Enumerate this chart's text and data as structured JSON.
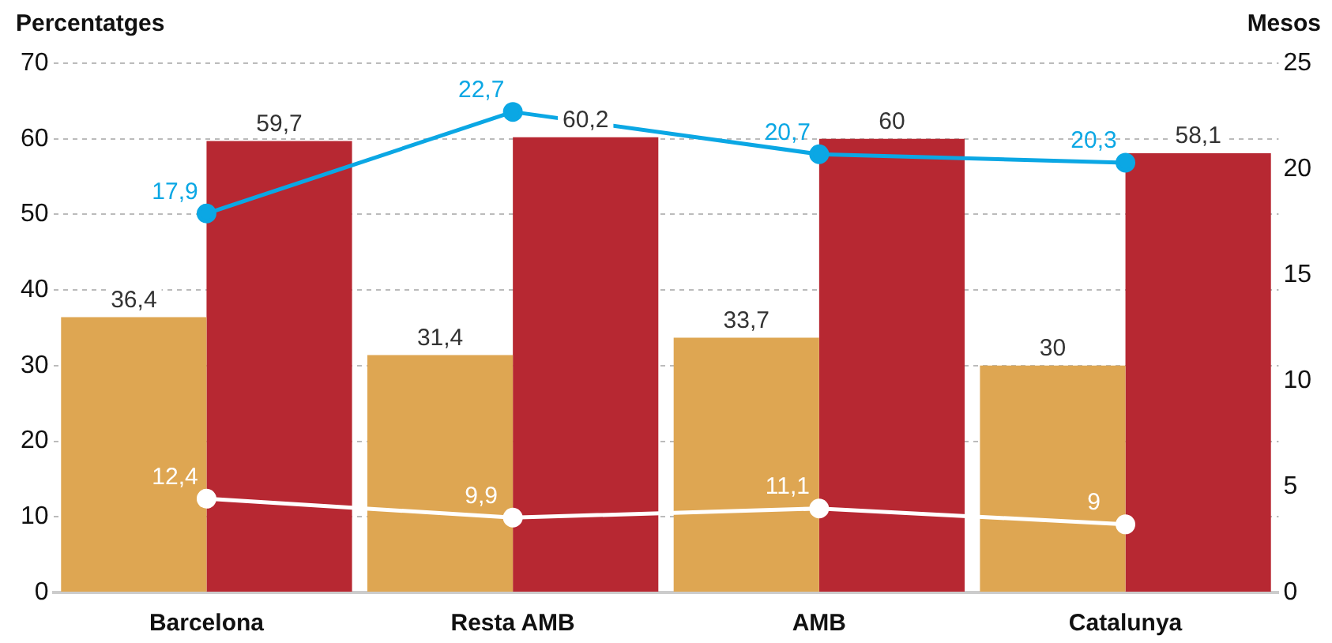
{
  "chart_data": {
    "type": "bar",
    "ylabel": "Percentatges",
    "y2label": "Mesos",
    "categories": [
      "Barcelona",
      "Resta AMB",
      "AMB",
      "Catalunya"
    ],
    "series": [
      {
        "color": "#dea652",
        "values": [
          36.4,
          31.4,
          33.7,
          30
        ],
        "value_labels": [
          "36,4",
          "31,4",
          "33,7",
          "30"
        ]
      },
      {
        "color": "#b72832",
        "values": [
          59.7,
          60.2,
          60,
          58.1
        ],
        "value_labels": [
          "59,7",
          "60,2",
          "60",
          "58,1"
        ]
      },
      {
        "type": "line",
        "color": "#ffffff",
        "values": [
          12.4,
          9.9,
          11.1,
          9
        ],
        "value_labels": [
          "12,4",
          "9,9",
          "11,1",
          "9"
        ]
      },
      {
        "type": "line",
        "axis": "y2",
        "color": "#0ba7e4",
        "values": [
          17.9,
          22.7,
          20.7,
          20.3
        ],
        "value_labels": [
          "17,9",
          "22,7",
          "20,7",
          "20,3"
        ]
      }
    ],
    "ylim": [
      0,
      70
    ],
    "yticks": [
      0,
      10,
      20,
      30,
      40,
      50,
      60,
      70
    ],
    "y2lim": [
      0,
      25
    ],
    "y2ticks": [
      0,
      5,
      10,
      15,
      20,
      25
    ],
    "grid": "y",
    "legend": false,
    "marker": "circle"
  }
}
